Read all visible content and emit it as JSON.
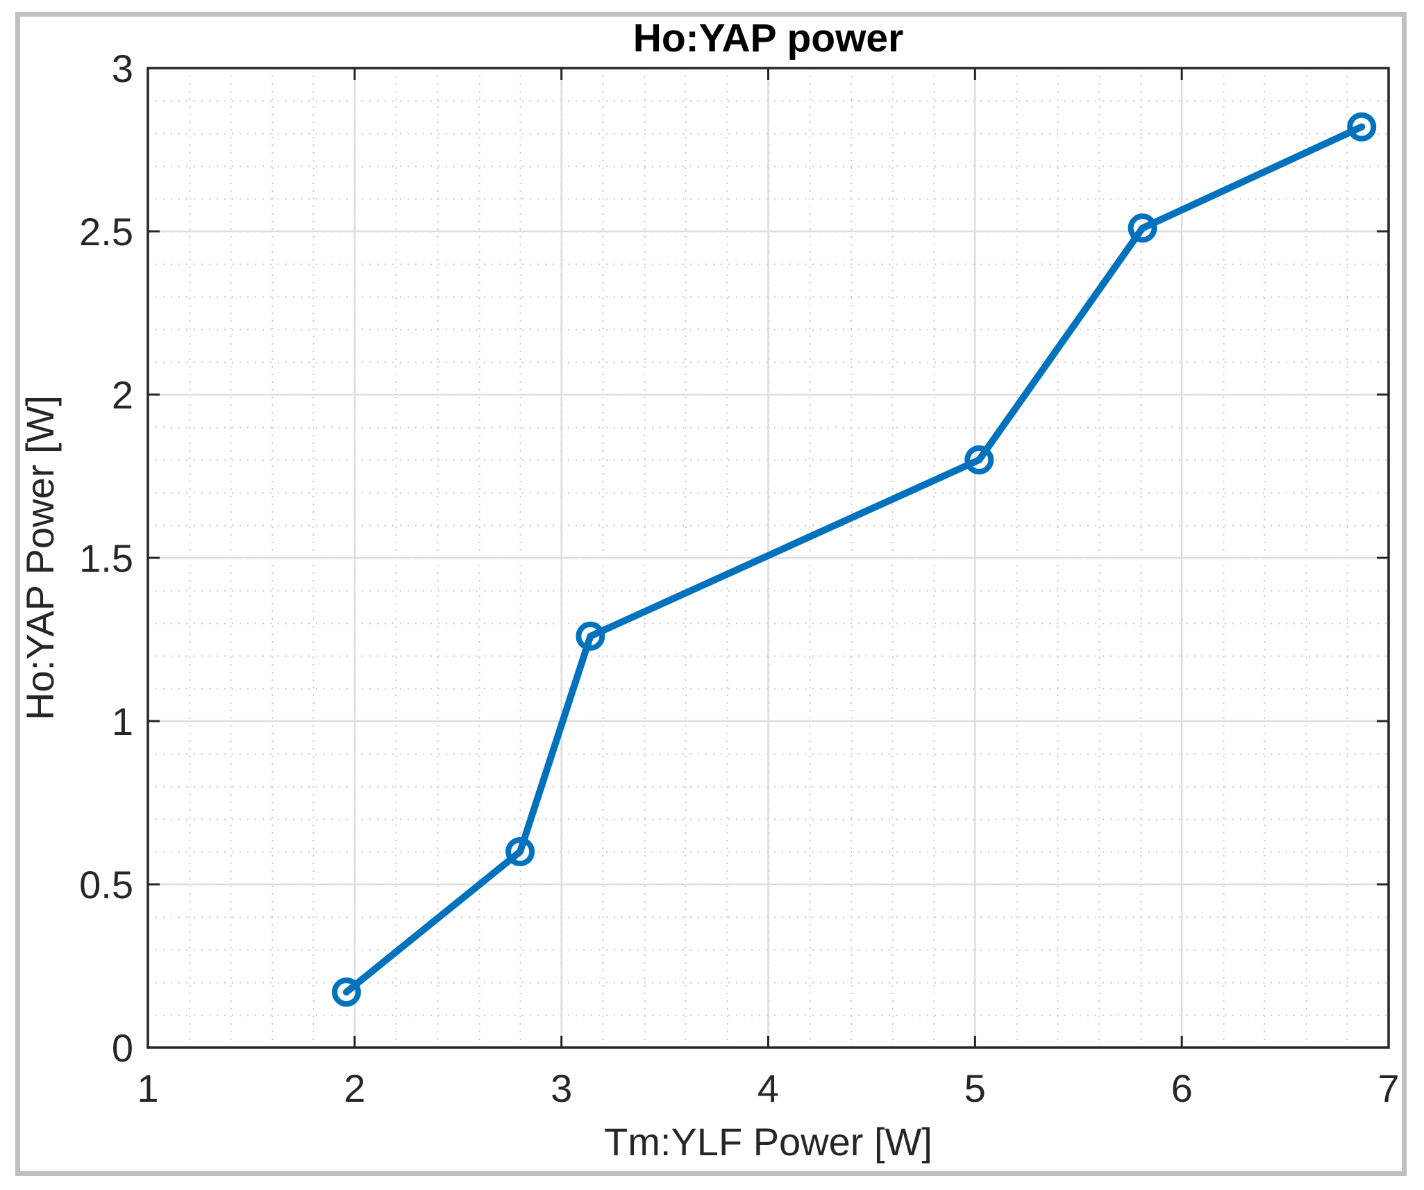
{
  "chart_data": {
    "type": "line",
    "title": "Ho:YAP power",
    "xlabel": "Tm:YLF Power [W]",
    "ylabel": "Ho:YAP Power [W]",
    "xlim": [
      1,
      7
    ],
    "ylim": [
      0,
      3
    ],
    "xticks": [
      1,
      2,
      3,
      4,
      5,
      6,
      7
    ],
    "yticks": [
      0,
      0.5,
      1,
      1.5,
      2,
      2.5,
      3
    ],
    "xtick_labels": [
      "1",
      "2",
      "3",
      "4",
      "5",
      "6",
      "7"
    ],
    "ytick_labels": [
      "0",
      "0.5",
      "1",
      "1.5",
      "2",
      "2.5",
      "3"
    ],
    "grid": true,
    "minor_grid": true,
    "legend": null,
    "series": [
      {
        "name": "Ho:YAP power",
        "color": "#0072BD",
        "marker": "circle",
        "x": [
          1.96,
          2.8,
          3.14,
          5.02,
          5.81,
          6.87
        ],
        "y": [
          0.17,
          0.6,
          1.26,
          1.8,
          2.51,
          2.82
        ]
      }
    ]
  },
  "colors": {
    "line": "#0072BD",
    "axis": "#262626",
    "major_grid": "#dedede",
    "minor_grid": "#c8c8c8",
    "frame": "#c0c0c0"
  }
}
